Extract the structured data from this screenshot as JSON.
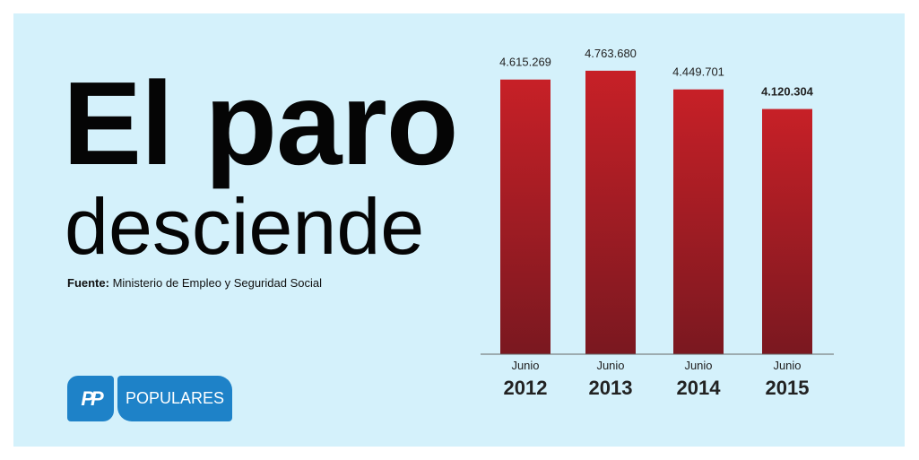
{
  "headline": {
    "line1": "El paro",
    "line2": "desciende"
  },
  "source": {
    "label": "Fuente:",
    "text": "Ministerio de Empleo y Seguridad Social"
  },
  "logo": {
    "mark": "PP",
    "text": "POPULARES",
    "color": "#1e82c8"
  },
  "colors": {
    "background": "#d4f1fb",
    "bar_top": "#c72027",
    "bar_bottom": "#7a1820"
  },
  "chart_data": {
    "type": "bar",
    "categories_month": [
      "Junio",
      "Junio",
      "Junio",
      "Junio"
    ],
    "categories": [
      "2012",
      "2013",
      "2014",
      "2015"
    ],
    "values": [
      4615269,
      4763680,
      4449701,
      4120304
    ],
    "value_labels": [
      "4.615.269",
      "4.763.680",
      "4.449.701",
      "4.120.304"
    ],
    "highlight_index": 3,
    "title": "",
    "xlabel": "",
    "ylabel": "",
    "ylim": [
      0,
      5500000
    ],
    "grid": false,
    "legend": "none"
  }
}
